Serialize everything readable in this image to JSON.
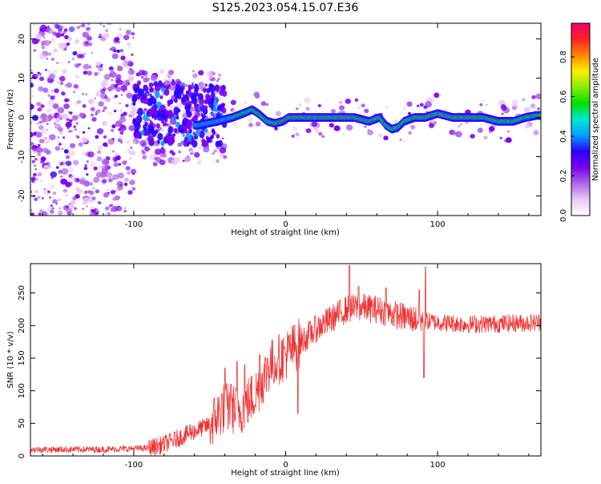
{
  "title": "S125.2023.054.15.07.E36",
  "chart_data": [
    {
      "type": "heatmap",
      "xlabel": "Height of straight line (km)",
      "ylabel": "Frequency (Hz)",
      "xlim": [
        -168,
        168
      ],
      "ylim": [
        -25,
        24
      ],
      "xticks": [
        -100,
        0,
        100
      ],
      "xtick_labels": [
        "-100",
        "0",
        "100"
      ],
      "yticks": [
        -20,
        -10,
        0,
        10,
        20
      ],
      "ytick_labels": [
        "-20",
        "-10",
        "0",
        "10",
        "20"
      ],
      "colorbar": {
        "label": "Normalized spectral amplitude",
        "range": [
          0,
          0.97
        ],
        "ticks": [
          0.0,
          0.2,
          0.4,
          0.6,
          0.8
        ],
        "tick_labels": [
          "0.0",
          "0.2",
          "0.4",
          "0.6",
          "0.8"
        ],
        "colormap": [
          "#ffffff",
          "#e9c9f5",
          "#b066e8",
          "#7a00ee",
          "#2a00ff",
          "#00a0ff",
          "#00e8d0",
          "#00e000",
          "#88ee00",
          "#ffee00",
          "#ff8800",
          "#ff2020",
          "#ee0070"
        ]
      },
      "ridge": {
        "x": [
          -58,
          -45,
          -35,
          -28,
          -22,
          -18,
          -12,
          -7,
          -2,
          2,
          6,
          12,
          20,
          28,
          35,
          45,
          55,
          62,
          66,
          70,
          74,
          78,
          85,
          92,
          100,
          110,
          120,
          130,
          140,
          150,
          158,
          165
        ],
        "y": [
          -2,
          -1,
          0,
          1,
          2,
          1,
          -1,
          -1.5,
          -1,
          0,
          0,
          0,
          0,
          0,
          0,
          0,
          -1,
          0,
          -2,
          -3,
          -2.5,
          -1,
          0,
          0,
          1,
          0,
          0,
          0,
          -1,
          -1,
          0,
          0.5
        ]
      },
      "grid": false
    },
    {
      "type": "line",
      "xlabel": "Height of straight line (km)",
      "ylabel": "SNR (10 * v/v)",
      "xlim": [
        -168,
        168
      ],
      "ylim": [
        0,
        295
      ],
      "xticks": [
        -100,
        0,
        100
      ],
      "xtick_labels": [
        "-100",
        "0",
        "100"
      ],
      "yticks": [
        0,
        50,
        100,
        150,
        200,
        250
      ],
      "ytick_labels": [
        "0",
        "50",
        "100",
        "150",
        "200",
        "250"
      ],
      "color": "#ee3333",
      "trend": {
        "x": [
          -168,
          -120,
          -90,
          -80,
          -70,
          -60,
          -50,
          -40,
          -30,
          -20,
          -10,
          0,
          10,
          20,
          30,
          40,
          50,
          60,
          70,
          80,
          90,
          100,
          120,
          140,
          168
        ],
        "y": [
          10,
          10,
          12,
          18,
          28,
          38,
          48,
          75,
          70,
          95,
          140,
          155,
          175,
          195,
          210,
          225,
          228,
          225,
          218,
          212,
          208,
          205,
          202,
          203,
          205
        ]
      },
      "spikes": {
        "x": [
          -63,
          -42,
          -40,
          -36,
          -32,
          -27,
          -17,
          -12,
          -5,
          8,
          42,
          48,
          66,
          88,
          91,
          92
        ],
        "y": [
          48,
          95,
          135,
          110,
          145,
          140,
          155,
          150,
          150,
          65,
          292,
          260,
          258,
          255,
          120,
          290
        ]
      },
      "grid": false
    }
  ]
}
